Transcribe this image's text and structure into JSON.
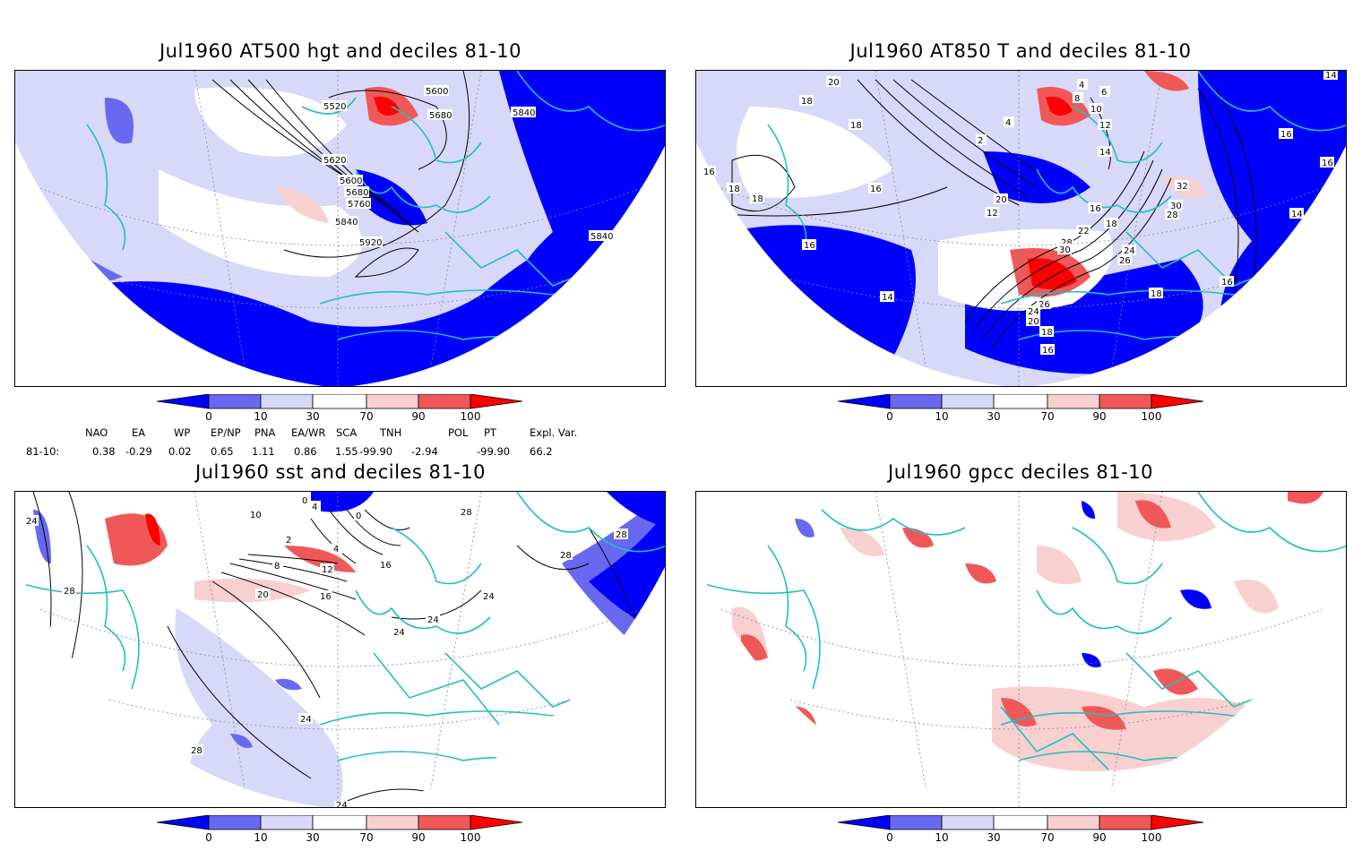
{
  "panels": [
    {
      "id": "p1",
      "title": "Jul1960 AT500 hgt and deciles 81-10",
      "contour_labels": [
        "5520",
        "5600",
        "5680",
        "5840",
        "5620",
        "5600",
        "5680",
        "5760",
        "5840",
        "5920",
        "5840"
      ]
    },
    {
      "id": "p2",
      "title": "Jul1960 AT850 T and deciles 81-10",
      "contour_labels": [
        "20",
        "18",
        "18",
        "16",
        "18",
        "16",
        "14",
        "12",
        "10",
        "8",
        "6",
        "4",
        "4",
        "2",
        "12",
        "14",
        "16",
        "18",
        "20",
        "22",
        "24",
        "26",
        "28",
        "30",
        "32",
        "30",
        "28",
        "26",
        "24",
        "20",
        "18",
        "16",
        "16",
        "14",
        "16",
        "18",
        "16",
        "14",
        "16",
        "18"
      ]
    },
    {
      "id": "p3",
      "title": "Jul1960 sst and deciles 81-10",
      "contour_labels": [
        "24",
        "28",
        "0",
        "4",
        "10",
        "0",
        "2",
        "4",
        "8",
        "12",
        "16",
        "20",
        "16",
        "24",
        "24",
        "24",
        "28",
        "28",
        "28",
        "28",
        "24",
        "24"
      ]
    },
    {
      "id": "p4",
      "title": "Jul1960 gpcc deciles 81-10",
      "contour_labels": []
    }
  ],
  "colorbar": {
    "ticks": [
      "0",
      "10",
      "30",
      "70",
      "90",
      "100"
    ],
    "colors": {
      "dark_blue": "#0000ff",
      "mid_blue": "#6868f0",
      "light_blue": "#d8d8f8",
      "white": "#ffffff",
      "light_red": "#f8d0d0",
      "mid_red": "#f05858",
      "dark_red": "#ff0000"
    }
  },
  "indices": {
    "headers": [
      "NAO",
      "EA",
      "WP",
      "EP/NP",
      "PNA",
      "EA/WR",
      "SCA",
      "TNH",
      "POL",
      "PT",
      "Expl. Var."
    ],
    "row_label": "81-10:",
    "values": [
      "0.38",
      "-0.29",
      "0.02",
      "0.65",
      "1.11",
      "0.86",
      "1.55",
      "-99.90",
      "-2.94",
      "-99.90",
      "66.2"
    ]
  },
  "map_colors": {
    "coast": "#20c0c0",
    "graticule": "#888888"
  }
}
